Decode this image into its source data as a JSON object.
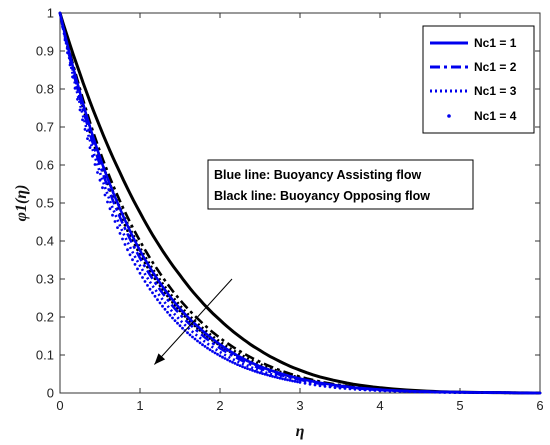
{
  "chart_data": {
    "type": "line",
    "xlabel": "η",
    "ylabel": "φ1(η)",
    "xlim": [
      0,
      6
    ],
    "ylim": [
      0,
      1
    ],
    "x_ticks": [
      "0",
      "1",
      "2",
      "3",
      "4",
      "5",
      "6"
    ],
    "y_ticks": [
      "0",
      "0.1",
      "0.2",
      "0.3",
      "0.4",
      "0.5",
      "0.6",
      "0.7",
      "0.8",
      "0.9",
      "1"
    ],
    "grid": false,
    "legend_position": "top-right",
    "legend": [
      {
        "label": "Nc1 = 1",
        "style": "solid"
      },
      {
        "label": "Nc1 = 2",
        "style": "dashdot"
      },
      {
        "label": "Nc1 = 3",
        "style": "dotted"
      },
      {
        "label": "Nc1 = 4",
        "style": "point"
      }
    ],
    "annotations": [
      "Blue line: Buoyancy Assisting flow",
      "Black line: Buoyancy Opposing flow"
    ],
    "x": [
      0,
      0.25,
      0.5,
      0.75,
      1,
      1.25,
      1.5,
      1.75,
      2,
      2.25,
      2.5,
      2.75,
      3,
      3.5,
      4,
      4.5,
      5,
      5.5,
      6
    ],
    "series": [
      {
        "flow": "opposing",
        "Nc1": 1,
        "style": "solid",
        "color": "#000000",
        "values": [
          1,
          0.84,
          0.7,
          0.58,
          0.475,
          0.385,
          0.31,
          0.245,
          0.192,
          0.148,
          0.112,
          0.083,
          0.06,
          0.03,
          0.014,
          0.006,
          0.002,
          0.001,
          0
        ]
      },
      {
        "flow": "opposing",
        "Nc1": 2,
        "style": "dashdot",
        "color": "#000000",
        "values": [
          1,
          0.8,
          0.635,
          0.505,
          0.4,
          0.315,
          0.245,
          0.19,
          0.145,
          0.11,
          0.082,
          0.06,
          0.043,
          0.021,
          0.01,
          0.004,
          0.002,
          0.001,
          0
        ]
      },
      {
        "flow": "opposing",
        "Nc1": 3,
        "style": "dotted",
        "color": "#000000",
        "values": [
          1,
          0.79,
          0.62,
          0.488,
          0.383,
          0.298,
          0.23,
          0.177,
          0.135,
          0.102,
          0.076,
          0.056,
          0.04,
          0.02,
          0.009,
          0.004,
          0.002,
          0.001,
          0
        ]
      },
      {
        "flow": "opposing",
        "Nc1": 4,
        "style": "point",
        "color": "#000000",
        "values": [
          1,
          0.78,
          0.605,
          0.47,
          0.365,
          0.282,
          0.216,
          0.165,
          0.125,
          0.094,
          0.07,
          0.052,
          0.037,
          0.018,
          0.008,
          0.004,
          0.002,
          0.001,
          0
        ]
      },
      {
        "flow": "assisting",
        "Nc1": 1,
        "style": "solid",
        "color": "#0000ee",
        "values": [
          1,
          0.79,
          0.62,
          0.485,
          0.375,
          0.29,
          0.222,
          0.17,
          0.128,
          0.095,
          0.07,
          0.052,
          0.038,
          0.019,
          0.009,
          0.004,
          0.002,
          0.001,
          0
        ]
      },
      {
        "flow": "assisting",
        "Nc1": 2,
        "style": "dashdot",
        "color": "#0000ee",
        "values": [
          1,
          0.775,
          0.6,
          0.462,
          0.355,
          0.272,
          0.207,
          0.157,
          0.118,
          0.088,
          0.065,
          0.048,
          0.035,
          0.017,
          0.008,
          0.004,
          0.002,
          0.001,
          0
        ]
      },
      {
        "flow": "assisting",
        "Nc1": 3,
        "style": "dotted",
        "color": "#0000ee",
        "values": [
          1,
          0.76,
          0.58,
          0.44,
          0.335,
          0.255,
          0.192,
          0.145,
          0.108,
          0.08,
          0.059,
          0.043,
          0.031,
          0.015,
          0.007,
          0.003,
          0.001,
          0.001,
          0
        ]
      },
      {
        "flow": "assisting",
        "Nc1": 4,
        "style": "point",
        "color": "#0000ee",
        "values": [
          1,
          0.745,
          0.56,
          0.42,
          0.315,
          0.237,
          0.177,
          0.132,
          0.098,
          0.072,
          0.053,
          0.039,
          0.028,
          0.013,
          0.006,
          0.003,
          0.001,
          0.001,
          0
        ]
      }
    ],
    "arrow": {
      "from": [
        2.15,
        0.3
      ],
      "to": [
        1.18,
        0.075
      ]
    }
  }
}
